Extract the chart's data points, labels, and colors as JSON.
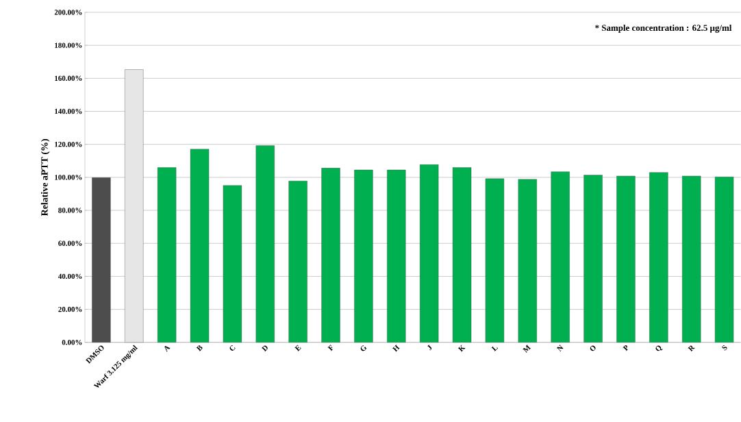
{
  "chart_data": {
    "type": "bar",
    "ylabel": "Relative aPTT  (%)",
    "annotations": [
      "* Sample concentration : 62.5 µg/ml"
    ],
    "categories": [
      "DMSO",
      "Warf 3.125 mg/ml",
      "A",
      "B",
      "C",
      "D",
      "E",
      "F",
      "G",
      "H",
      "J",
      "K",
      "L",
      "M",
      "N",
      "O",
      "P",
      "Q",
      "R",
      "S"
    ],
    "values": [
      99.8,
      165.3,
      106.0,
      117.1,
      95.1,
      119.2,
      97.8,
      105.6,
      104.5,
      104.5,
      107.7,
      106.0,
      99.2,
      98.8,
      103.4,
      101.4,
      100.8,
      103.0,
      100.8,
      100.3
    ],
    "colors": [
      "#4d4d4d",
      "#e6e6e6",
      "#00b050",
      "#00b050",
      "#00b050",
      "#00b050",
      "#00b050",
      "#00b050",
      "#00b050",
      "#00b050",
      "#00b050",
      "#00b050",
      "#00b050",
      "#00b050",
      "#00b050",
      "#00b050",
      "#00b050",
      "#00b050",
      "#00b050",
      "#00b050"
    ],
    "ylim": [
      0,
      200
    ],
    "yticks": [
      {
        "value": 0,
        "label": "0.00%"
      },
      {
        "value": 20,
        "label": "20.00%"
      },
      {
        "value": 40,
        "label": "40.00%"
      },
      {
        "value": 60,
        "label": "60.00%"
      },
      {
        "value": 80,
        "label": "80.00%"
      },
      {
        "value": 100,
        "label": "100.00%"
      },
      {
        "value": 120,
        "label": "120.00%"
      },
      {
        "value": 140,
        "label": "140.00%"
      },
      {
        "value": 160,
        "label": "160.00%"
      },
      {
        "value": 180,
        "label": "180.00%"
      },
      {
        "value": 200,
        "label": "200.00%"
      }
    ],
    "grid": "y"
  }
}
